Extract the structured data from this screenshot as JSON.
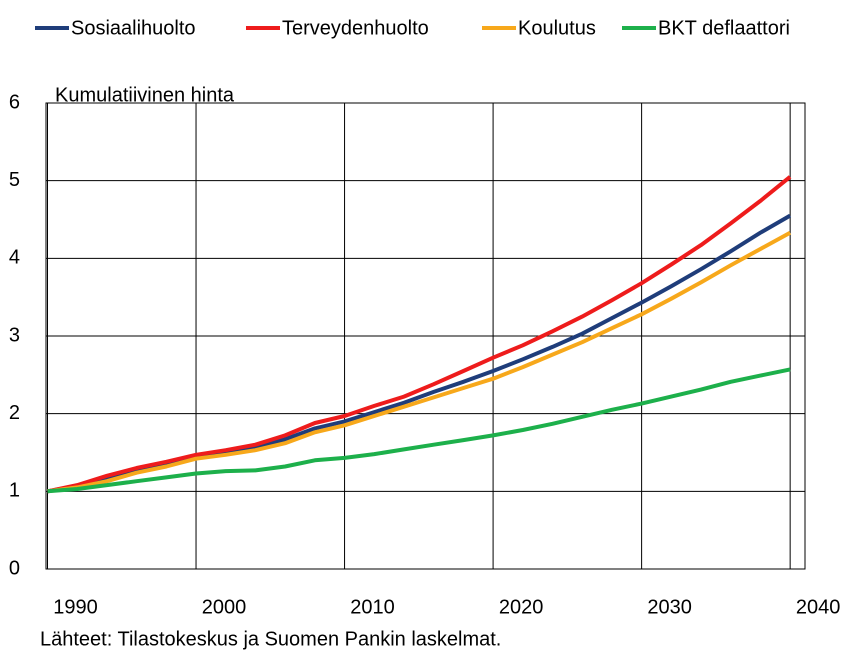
{
  "chart_data": {
    "type": "line",
    "y_label": "Kumulatiivinen hinta",
    "source": "Lähteet: Tilastokeskus ja Suomen Pankin laskelmat.",
    "x": [
      1990,
      1992,
      1994,
      1996,
      1998,
      2000,
      2002,
      2004,
      2006,
      2008,
      2010,
      2012,
      2014,
      2016,
      2018,
      2020,
      2022,
      2024,
      2026,
      2028,
      2030,
      2032,
      2034,
      2036,
      2038,
      2040
    ],
    "series": [
      {
        "name": "Sosiaalihuolto",
        "color": "#1f3d7a",
        "values": [
          1.0,
          1.07,
          1.17,
          1.27,
          1.35,
          1.44,
          1.5,
          1.56,
          1.67,
          1.81,
          1.9,
          2.02,
          2.14,
          2.28,
          2.41,
          2.55,
          2.7,
          2.86,
          3.03,
          3.23,
          3.43,
          3.64,
          3.86,
          4.09,
          4.33,
          4.55
        ]
      },
      {
        "name": "Terveydenhuolto",
        "color": "#ee1c1c",
        "values": [
          1.0,
          1.08,
          1.2,
          1.3,
          1.38,
          1.47,
          1.53,
          1.6,
          1.72,
          1.88,
          1.97,
          2.1,
          2.22,
          2.38,
          2.55,
          2.72,
          2.88,
          3.06,
          3.25,
          3.46,
          3.68,
          3.92,
          4.17,
          4.45,
          4.74,
          5.05
        ]
      },
      {
        "name": "Koulutus",
        "color": "#f7a81b",
        "values": [
          1.0,
          1.05,
          1.13,
          1.24,
          1.32,
          1.42,
          1.47,
          1.53,
          1.62,
          1.76,
          1.85,
          1.97,
          2.09,
          2.21,
          2.33,
          2.45,
          2.6,
          2.76,
          2.92,
          3.1,
          3.28,
          3.48,
          3.69,
          3.91,
          4.12,
          4.33
        ]
      },
      {
        "name": "BKT deflaattori",
        "color": "#1db04b",
        "values": [
          1.0,
          1.03,
          1.08,
          1.13,
          1.18,
          1.23,
          1.26,
          1.27,
          1.32,
          1.4,
          1.43,
          1.48,
          1.54,
          1.6,
          1.66,
          1.72,
          1.79,
          1.87,
          1.96,
          2.05,
          2.13,
          2.22,
          2.31,
          2.41,
          2.49,
          2.57
        ]
      }
    ],
    "xlim": [
      1990,
      2041
    ],
    "xticks": [
      1990,
      2000,
      2010,
      2020,
      2030,
      2040
    ],
    "ylim": [
      0,
      6
    ],
    "yticks": [
      0,
      1,
      2,
      3,
      4,
      5,
      6
    ],
    "grid": true,
    "legend": "top"
  }
}
